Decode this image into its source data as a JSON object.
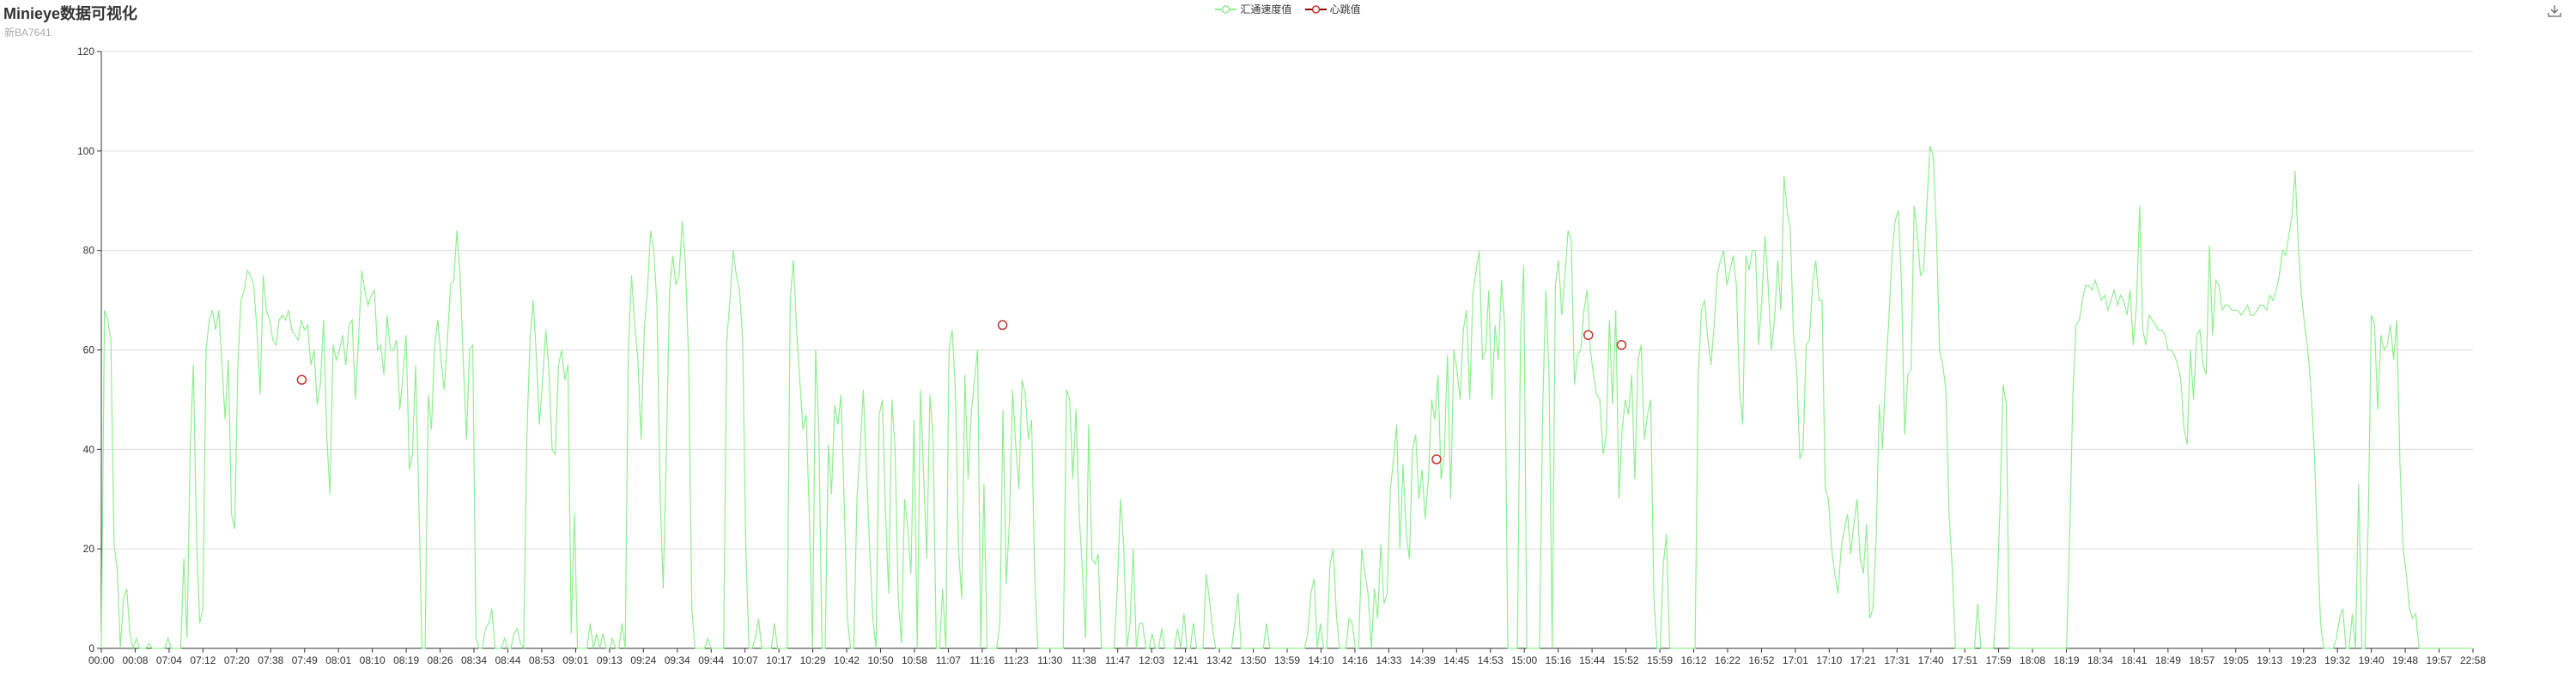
{
  "header": {
    "title": "Minieye数据可视化",
    "subtitle": "新BA7641"
  },
  "legend": {
    "series_a": "汇通速度值",
    "series_b": "心跳值"
  },
  "colors": {
    "speed": "#90ee90",
    "heartbeat": "#8b0000",
    "marker_stroke": "#c23531",
    "axis": "#333333",
    "grid": "#dddddd"
  },
  "icons": {
    "toolbox": "download-icon"
  },
  "chart_data": {
    "type": "line",
    "title": "Minieye数据可视化",
    "subtitle": "新BA7641",
    "xlabel": "",
    "ylabel": "",
    "ylim": [
      0,
      120
    ],
    "yticks": [
      0,
      20,
      40,
      60,
      80,
      100,
      120
    ],
    "grid": true,
    "legend_position": "top-center",
    "x_ticks": [
      "00:00",
      "00:08",
      "07:04",
      "07:12",
      "07:20",
      "07:38",
      "07:49",
      "08:01",
      "08:10",
      "08:19",
      "08:26",
      "08:34",
      "08:44",
      "08:53",
      "09:01",
      "09:13",
      "09:24",
      "09:34",
      "09:44",
      "10:07",
      "10:17",
      "10:29",
      "10:42",
      "10:50",
      "10:58",
      "11:07",
      "11:16",
      "11:23",
      "11:30",
      "11:38",
      "11:47",
      "12:03",
      "12:41",
      "13:42",
      "13:50",
      "13:59",
      "14:10",
      "14:16",
      "14:33",
      "14:39",
      "14:45",
      "14:53",
      "15:00",
      "15:16",
      "15:44",
      "15:52",
      "15:59",
      "16:12",
      "16:22",
      "16:52",
      "17:01",
      "17:10",
      "17:21",
      "17:31",
      "17:40",
      "17:51",
      "17:59",
      "18:08",
      "18:19",
      "18:34",
      "18:41",
      "18:49",
      "18:57",
      "19:05",
      "19:13",
      "19:23",
      "19:32",
      "19:40",
      "19:48",
      "19:57",
      "22:58"
    ],
    "series": [
      {
        "name": "汇通速度值",
        "values": [
          0,
          68,
          66,
          62,
          21,
          16,
          0,
          10,
          12,
          3,
          0,
          2,
          0,
          0,
          0,
          1,
          0,
          0,
          0,
          0,
          0,
          2,
          0,
          0,
          0,
          0,
          18,
          2,
          40,
          57,
          22,
          5,
          8,
          60,
          66,
          68,
          64,
          68,
          57,
          46,
          58,
          27,
          24,
          57,
          70,
          72,
          76,
          75,
          73,
          64,
          51,
          75,
          68,
          66,
          62,
          61,
          66,
          67,
          66,
          68,
          64,
          63,
          62,
          66,
          64,
          65,
          57,
          60,
          49,
          53,
          66,
          43,
          31,
          61,
          58,
          60,
          63,
          57,
          65,
          66,
          50,
          62,
          76,
          72,
          69,
          71,
          72,
          60,
          61,
          55,
          67,
          60,
          60,
          62,
          48,
          55,
          63,
          36,
          39,
          57,
          30,
          0,
          0,
          51,
          44,
          61,
          66,
          58,
          52,
          62,
          73,
          74,
          84,
          75,
          58,
          42,
          60,
          61,
          2,
          0,
          0,
          4,
          5,
          8,
          0,
          0,
          0,
          2,
          0,
          0,
          3,
          4,
          1,
          0,
          42,
          62,
          70,
          59,
          45,
          54,
          64,
          56,
          40,
          39,
          57,
          60,
          54,
          57,
          3,
          27,
          0,
          0,
          0,
          0,
          5,
          0,
          3,
          0,
          3,
          0,
          0,
          2,
          0,
          0,
          5,
          0,
          60,
          75,
          65,
          58,
          42,
          64,
          72,
          84,
          80,
          69,
          31,
          12,
          40,
          72,
          79,
          73,
          75,
          86,
          77,
          58,
          8,
          0,
          0,
          0,
          0,
          2,
          0,
          0,
          0,
          0,
          0,
          62,
          70,
          80,
          75,
          72,
          62,
          20,
          0,
          0,
          2,
          6,
          0,
          0,
          0,
          0,
          5,
          0,
          0,
          0,
          0,
          70,
          78,
          64,
          54,
          44,
          47,
          27,
          0,
          60,
          44,
          0,
          0,
          41,
          31,
          49,
          45,
          51,
          29,
          6,
          0,
          0,
          30,
          40,
          52,
          36,
          20,
          6,
          0,
          47,
          50,
          27,
          11,
          50,
          40,
          10,
          1,
          30,
          24,
          15,
          46,
          0,
          52,
          35,
          18,
          51,
          42,
          0,
          0,
          12,
          0,
          60,
          64,
          52,
          20,
          10,
          55,
          34,
          47,
          54,
          60,
          0,
          33,
          0,
          0,
          0,
          0,
          5,
          48,
          13,
          25,
          52,
          41,
          32,
          54,
          51,
          42,
          46,
          14,
          0,
          0,
          0,
          0,
          0,
          0,
          0,
          0,
          0,
          52,
          50,
          34,
          48,
          27,
          16,
          2,
          45,
          18,
          17,
          19,
          0,
          0,
          0,
          0,
          0,
          12,
          30,
          21,
          0,
          5,
          20,
          0,
          5,
          5,
          0,
          0,
          3,
          0,
          0,
          4,
          0,
          0,
          0,
          0,
          4,
          0,
          7,
          0,
          0,
          5,
          0,
          0,
          0,
          15,
          10,
          4,
          0,
          0,
          0,
          0,
          0,
          0,
          5,
          11,
          0,
          0,
          0,
          0,
          0,
          0,
          0,
          0,
          5,
          0,
          0,
          0,
          0,
          0,
          0,
          0,
          0,
          0,
          0,
          0,
          0,
          3,
          11,
          14,
          0,
          5,
          0,
          0,
          17,
          20,
          7,
          0,
          0,
          0,
          6,
          5,
          0,
          0,
          20,
          15,
          11,
          0,
          12,
          6,
          21,
          9,
          11,
          32,
          38,
          45,
          20,
          37,
          23,
          18,
          40,
          43,
          30,
          36,
          26,
          34,
          50,
          46,
          55,
          34,
          39,
          59,
          30,
          60,
          56,
          50,
          64,
          68,
          50,
          71,
          76,
          80,
          58,
          60,
          72,
          50,
          65,
          58,
          74,
          65,
          0,
          0,
          0,
          0,
          63,
          77,
          0,
          0,
          0,
          0,
          0,
          48,
          72,
          55,
          0,
          73,
          78,
          67,
          75,
          84,
          82,
          53,
          59,
          60,
          68,
          72,
          60,
          55,
          51,
          50,
          39,
          43,
          66,
          49,
          68,
          30,
          44,
          50,
          47,
          55,
          34,
          58,
          61,
          42,
          47,
          50,
          10,
          0,
          0,
          17,
          23,
          0,
          0,
          0,
          0,
          0,
          0,
          0,
          0,
          0,
          55,
          68,
          70,
          62,
          57,
          65,
          75,
          78,
          80,
          73,
          76,
          79,
          73,
          52,
          45,
          79,
          76,
          80,
          80,
          61,
          70,
          83,
          73,
          60,
          66,
          78,
          68,
          95,
          88,
          84,
          63,
          56,
          38,
          40,
          61,
          62,
          73,
          78,
          70,
          70,
          32,
          30,
          20,
          15,
          11,
          20,
          24,
          27,
          19,
          25,
          30,
          18,
          15,
          25,
          6,
          8,
          22,
          49,
          40,
          55,
          66,
          79,
          86,
          88,
          73,
          43,
          55,
          56,
          89,
          83,
          75,
          76,
          89,
          101,
          99,
          84,
          60,
          57,
          52,
          27,
          16,
          0,
          0,
          0,
          0,
          0,
          0,
          0,
          9,
          0,
          0,
          0,
          0,
          0,
          10,
          28,
          53,
          49,
          0,
          0,
          0,
          0,
          0,
          0,
          0,
          0,
          0,
          0,
          0,
          0,
          0,
          0,
          0,
          0,
          0,
          0,
          0,
          23,
          51,
          65,
          66,
          70,
          73,
          73,
          72,
          74,
          72,
          70,
          71,
          68,
          70,
          72,
          69,
          71,
          70,
          67,
          72,
          61,
          69,
          89,
          64,
          61,
          67,
          66,
          65,
          64,
          64,
          63,
          60,
          60,
          59,
          57,
          54,
          44,
          41,
          60,
          50,
          63,
          64,
          57,
          55,
          81,
          63,
          74,
          73,
          68,
          69,
          69,
          68,
          68,
          68,
          67,
          68,
          69,
          67,
          67,
          68,
          69,
          69,
          68,
          71,
          70,
          72,
          75,
          80,
          79,
          83,
          87,
          96,
          81,
          71,
          65,
          60,
          52,
          40,
          22,
          5,
          0,
          0,
          0,
          0,
          2,
          6,
          8,
          0,
          0,
          7,
          0,
          33,
          0,
          0,
          25,
          67,
          65,
          48,
          63,
          60,
          61,
          65,
          58,
          66,
          37,
          20,
          15,
          8,
          6,
          7,
          0,
          0,
          0,
          0,
          0,
          0,
          0,
          0,
          0,
          0,
          0,
          0,
          0,
          0,
          0,
          0,
          0,
          0
        ]
      },
      {
        "name": "心跳值",
        "values": [
          54,
          65,
          38,
          63,
          61
        ]
      }
    ]
  }
}
